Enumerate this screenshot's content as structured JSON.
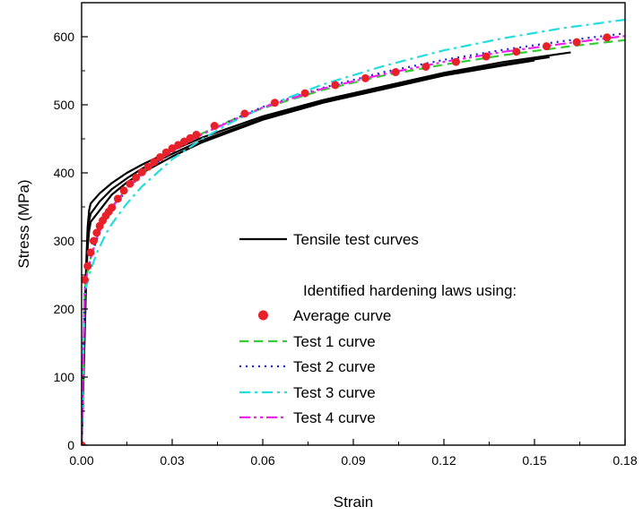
{
  "chart_data": {
    "type": "line",
    "xlabel": "Strain",
    "ylabel": "Stress (MPa)",
    "xlim": [
      0,
      0.18
    ],
    "ylim": [
      0,
      650
    ],
    "x_ticks": [
      "0.00",
      "0.03",
      "0.06",
      "0.09",
      "0.12",
      "0.15",
      "0.18"
    ],
    "y_ticks": [
      "0",
      "100",
      "200",
      "300",
      "400",
      "500",
      "600"
    ],
    "grid": false,
    "legend": {
      "placement": "center-right",
      "group_title": "Identified hardening laws using:",
      "entries": [
        "Tensile test curves",
        "Average curve",
        "Test 1 curve",
        "Test 2 curve",
        "Test 3 curve",
        "Test 4 curve"
      ]
    },
    "colors": {
      "tensile": "#000000",
      "average": "#e8202a",
      "test1": "#33cc33",
      "test2": "#2222cc",
      "test3": "#22dddd",
      "test4": "#ee22ee"
    },
    "series": [
      {
        "name": "Tensile test curves",
        "style": "solid",
        "curves": [
          {
            "x": [
              0,
              0.0005,
              0.001,
              0.0015,
              0.002,
              0.0025,
              0.003,
              0.006,
              0.01,
              0.015,
              0.02,
              0.03,
              0.04,
              0.06,
              0.08,
              0.1,
              0.12,
              0.14,
              0.162
            ],
            "y": [
              0,
              90,
              180,
              260,
              320,
              345,
              355,
              370,
              385,
              400,
              412,
              433,
              452,
              483,
              507,
              527,
              547,
              563,
              577
            ]
          },
          {
            "x": [
              0,
              0.0005,
              0.001,
              0.0015,
              0.002,
              0.0025,
              0.003,
              0.006,
              0.01,
              0.015,
              0.02,
              0.03,
              0.04,
              0.06,
              0.08,
              0.1,
              0.12,
              0.14,
              0.155
            ],
            "y": [
              0,
              85,
              170,
              250,
              305,
              330,
              340,
              358,
              376,
              392,
              406,
              428,
              448,
              480,
              505,
              525,
              545,
              560,
              570
            ]
          },
          {
            "x": [
              0,
              0.0005,
              0.001,
              0.0015,
              0.002,
              0.0025,
              0.003,
              0.006,
              0.01,
              0.015,
              0.02,
              0.03,
              0.04,
              0.06,
              0.08,
              0.1,
              0.12,
              0.14,
              0.15
            ],
            "y": [
              0,
              80,
              160,
              240,
              290,
              315,
              328,
              345,
              368,
              386,
              400,
              424,
              445,
              478,
              503,
              523,
              543,
              558,
              565
            ]
          }
        ]
      },
      {
        "name": "Average curve",
        "style": "markers",
        "x": [
          0,
          0.001,
          0.002,
          0.003,
          0.004,
          0.005,
          0.006,
          0.007,
          0.008,
          0.009,
          0.01,
          0.012,
          0.014,
          0.016,
          0.018,
          0.02,
          0.022,
          0.024,
          0.026,
          0.028,
          0.03,
          0.032,
          0.034,
          0.036,
          0.038,
          0.044,
          0.054,
          0.064,
          0.074,
          0.084,
          0.094,
          0.104,
          0.114,
          0.124,
          0.134,
          0.144,
          0.154,
          0.164,
          0.174
        ],
        "y": [
          0,
          243,
          263,
          283,
          300,
          312,
          322,
          330,
          337,
          343,
          349,
          362,
          374,
          384,
          393,
          401,
          409,
          416,
          423,
          430,
          436,
          441,
          446,
          451,
          456,
          469,
          487,
          503,
          517,
          529,
          539,
          548,
          556,
          563,
          571,
          578,
          586,
          592,
          599
        ]
      },
      {
        "name": "Test 1 curve",
        "style": "dashed",
        "x": [
          0,
          0.0005,
          0.001,
          0.0015,
          0.002,
          0.003,
          0.005,
          0.008,
          0.01,
          0.015,
          0.02,
          0.03,
          0.04,
          0.05,
          0.06,
          0.08,
          0.1,
          0.12,
          0.14,
          0.16,
          0.18
        ],
        "y": [
          0,
          110,
          225,
          245,
          255,
          275,
          305,
          335,
          350,
          378,
          400,
          433,
          458,
          478,
          495,
          522,
          543,
          559,
          573,
          585,
          595
        ]
      },
      {
        "name": "Test 2 curve",
        "style": "dotted",
        "x": [
          0,
          0.0005,
          0.001,
          0.0015,
          0.002,
          0.003,
          0.005,
          0.008,
          0.01,
          0.015,
          0.02,
          0.03,
          0.04,
          0.05,
          0.06,
          0.08,
          0.1,
          0.12,
          0.14,
          0.16,
          0.18
        ],
        "y": [
          0,
          110,
          225,
          245,
          255,
          275,
          302,
          332,
          347,
          375,
          398,
          432,
          457,
          478,
          497,
          525,
          548,
          566,
          581,
          594,
          605
        ]
      },
      {
        "name": "Test 3 curve",
        "style": "dashdot",
        "x": [
          0,
          0.0005,
          0.001,
          0.0015,
          0.002,
          0.003,
          0.005,
          0.008,
          0.01,
          0.015,
          0.02,
          0.03,
          0.04,
          0.05,
          0.06,
          0.08,
          0.1,
          0.12,
          0.14,
          0.16,
          0.18
        ],
        "y": [
          0,
          110,
          220,
          232,
          240,
          257,
          282,
          310,
          325,
          355,
          380,
          420,
          450,
          475,
          496,
          530,
          557,
          580,
          598,
          613,
          625
        ]
      },
      {
        "name": "Test 4 curve",
        "style": "dashdotdot",
        "x": [
          0,
          0.0005,
          0.001,
          0.0015,
          0.002,
          0.003,
          0.005,
          0.008,
          0.01,
          0.015,
          0.02,
          0.03,
          0.04,
          0.05,
          0.06,
          0.08,
          0.1,
          0.12,
          0.14,
          0.16,
          0.18
        ],
        "y": [
          0,
          110,
          225,
          245,
          255,
          275,
          304,
          334,
          349,
          377,
          399,
          433,
          457,
          477,
          496,
          524,
          545,
          563,
          578,
          590,
          601
        ]
      }
    ]
  }
}
